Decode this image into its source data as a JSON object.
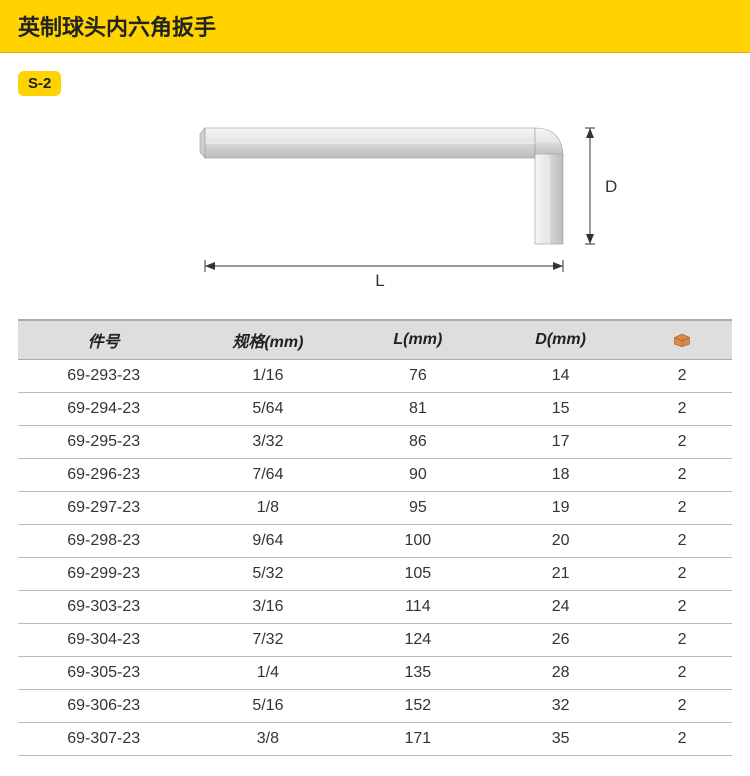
{
  "header": {
    "title": "英制球头内六角扳手"
  },
  "badge": {
    "label": "S-2"
  },
  "diagram": {
    "labels": {
      "L": "L",
      "D": "D"
    },
    "colors": {
      "toolFill": "#e4e4e4",
      "toolHighlight": "#f5f5f5",
      "toolShadow": "#b8b8b8",
      "dimLine": "#333333",
      "dimText": "#333333",
      "background": "#ffffff"
    },
    "fontSize": 17
  },
  "table": {
    "columns": [
      {
        "key": "part",
        "label": "件号"
      },
      {
        "key": "spec",
        "label": "规格(mm)"
      },
      {
        "key": "L",
        "label": "L(mm)"
      },
      {
        "key": "D",
        "label": "D(mm)"
      },
      {
        "key": "pkg",
        "label": ""
      }
    ],
    "iconColor": "#d98a4a",
    "rows": [
      {
        "part": "69-293-23",
        "spec": "1/16",
        "L": "76",
        "D": "14",
        "pkg": "2"
      },
      {
        "part": "69-294-23",
        "spec": "5/64",
        "L": "81",
        "D": "15",
        "pkg": "2"
      },
      {
        "part": "69-295-23",
        "spec": "3/32",
        "L": "86",
        "D": "17",
        "pkg": "2"
      },
      {
        "part": "69-296-23",
        "spec": "7/64",
        "L": "90",
        "D": "18",
        "pkg": "2"
      },
      {
        "part": "69-297-23",
        "spec": "1/8",
        "L": "95",
        "D": "19",
        "pkg": "2"
      },
      {
        "part": "69-298-23",
        "spec": "9/64",
        "L": "100",
        "D": "20",
        "pkg": "2"
      },
      {
        "part": "69-299-23",
        "spec": "5/32",
        "L": "105",
        "D": "21",
        "pkg": "2"
      },
      {
        "part": "69-303-23",
        "spec": "3/16",
        "L": "114",
        "D": "24",
        "pkg": "2"
      },
      {
        "part": "69-304-23",
        "spec": "7/32",
        "L": "124",
        "D": "26",
        "pkg": "2"
      },
      {
        "part": "69-305-23",
        "spec": "1/4",
        "L": "135",
        "D": "28",
        "pkg": "2"
      },
      {
        "part": "69-306-23",
        "spec": "5/16",
        "L": "152",
        "D": "32",
        "pkg": "2"
      },
      {
        "part": "69-307-23",
        "spec": "3/8",
        "L": "171",
        "D": "35",
        "pkg": "2"
      }
    ]
  },
  "colors": {
    "brandYellow": "#fed300",
    "headerBorder": "#d0b800",
    "tableHeaderBg": "#dedede",
    "tableBorder": "#bbbbbb",
    "text": "#222222"
  }
}
